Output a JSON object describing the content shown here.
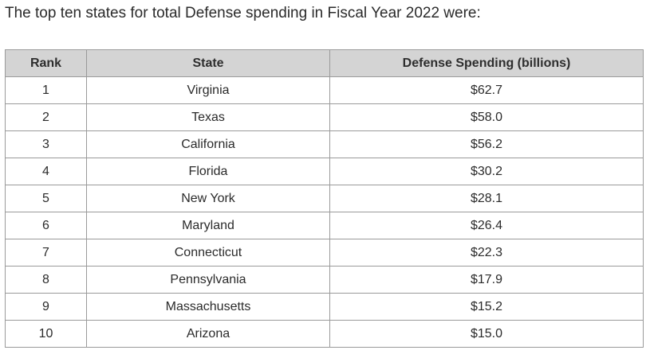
{
  "intro": "The top ten states for total Defense spending in Fiscal Year 2022 were:",
  "table": {
    "headers": {
      "rank": "Rank",
      "state": "State",
      "spending": "Defense Spending (billions)"
    },
    "rows": [
      {
        "rank": "1",
        "state": "Virginia",
        "spending": "$62.7"
      },
      {
        "rank": "2",
        "state": "Texas",
        "spending": "$58.0"
      },
      {
        "rank": "3",
        "state": "California",
        "spending": "$56.2"
      },
      {
        "rank": "4",
        "state": "Florida",
        "spending": "$30.2"
      },
      {
        "rank": "5",
        "state": "New York",
        "spending": "$28.1"
      },
      {
        "rank": "6",
        "state": "Maryland",
        "spending": "$26.4"
      },
      {
        "rank": "7",
        "state": "Connecticut",
        "spending": "$22.3"
      },
      {
        "rank": "8",
        "state": "Pennsylvania",
        "spending": "$17.9"
      },
      {
        "rank": "9",
        "state": "Massachusetts",
        "spending": "$15.2"
      },
      {
        "rank": "10",
        "state": "Arizona",
        "spending": "$15.0"
      }
    ]
  }
}
